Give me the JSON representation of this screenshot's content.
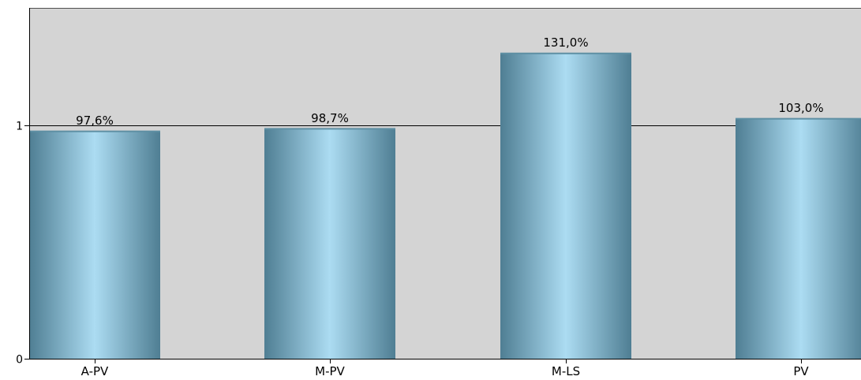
{
  "chart_data": {
    "type": "bar",
    "title": "",
    "xlabel": "",
    "ylabel": "",
    "categories": [
      "A-PV",
      "M-PV",
      "M-LS",
      "PV"
    ],
    "values": [
      0.976,
      0.987,
      1.31,
      1.03
    ],
    "value_labels": [
      "97,6%",
      "98,7%",
      "131,0%",
      "103,0%"
    ],
    "ylim": [
      0,
      1.5
    ],
    "yticks": [
      0,
      1
    ],
    "ytick_labels": [
      "0",
      "1"
    ],
    "reference_line": 1,
    "grid": false,
    "legend": "none",
    "colors": {
      "plot_background": "#d4d4d4",
      "bar_edge": "#5e8fa3",
      "bar_mid": "#4f7e93",
      "bar_highlight": "#acdcf2",
      "axis": "#000000"
    }
  }
}
